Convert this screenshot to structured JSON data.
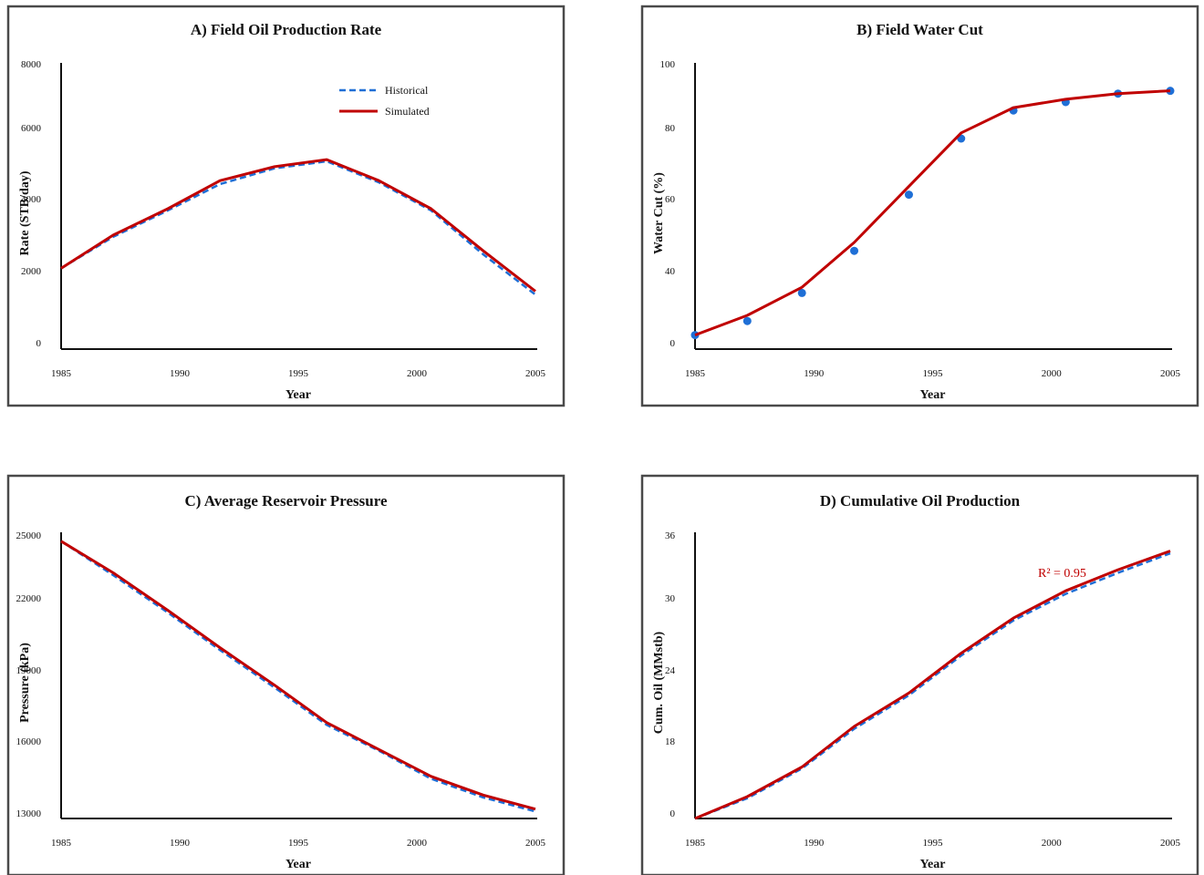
{
  "colors": {
    "historical": "#1f6fd6",
    "simulated": "#c00000"
  },
  "chart_data": [
    {
      "type": "line",
      "title": "A) Field Oil Production Rate",
      "xlabel": "Year",
      "ylabel": "Rate (STB/day)",
      "x": [
        1985,
        1987.2,
        1989.5,
        1991.7,
        1994,
        1996.2,
        1998.4,
        2000.6,
        2002.8,
        2005
      ],
      "xlim": [
        1985,
        2005
      ],
      "ylim": [
        0,
        8000
      ],
      "xticks": [
        "1985",
        "1990",
        "1995",
        "2000",
        "2005"
      ],
      "yticks": [
        "0",
        "2000",
        "4000",
        "6000",
        "8000"
      ],
      "series": [
        {
          "name": "Historical",
          "style": "dashed",
          "values": [
            2300,
            3200,
            3950,
            4700,
            5150,
            5350,
            4750,
            3950,
            2700,
            1550
          ]
        },
        {
          "name": "Simulated",
          "style": "solid",
          "values": [
            2300,
            3250,
            4000,
            4800,
            5200,
            5400,
            4800,
            4000,
            2800,
            1650
          ]
        }
      ],
      "legend": "top-center"
    },
    {
      "type": "line",
      "title": "B) Field Water Cut",
      "xlabel": "Year",
      "ylabel": "Water Cut (%)",
      "x": [
        1985,
        1987.2,
        1989.5,
        1991.7,
        1994,
        1996.2,
        1998.4,
        2000.6,
        2002.8,
        2005
      ],
      "xlim": [
        1985,
        2005
      ],
      "ylim": [
        0,
        100
      ],
      "xticks": [
        "1985",
        "1990",
        "1995",
        "2000",
        "2005"
      ],
      "yticks": [
        "0",
        "40",
        "60",
        "80",
        "100"
      ],
      "series": [
        {
          "name": "Historical",
          "style": "markers",
          "values": [
            5,
            10,
            20,
            35,
            55,
            75,
            85,
            88,
            91,
            92
          ]
        },
        {
          "name": "Simulated",
          "style": "solid",
          "values": [
            5,
            12,
            22,
            38,
            58,
            77,
            86,
            89,
            91,
            92
          ]
        }
      ]
    },
    {
      "type": "line",
      "title": "C) Average Reservoir Pressure",
      "xlabel": "Year",
      "ylabel": "Pressure (kPa)",
      "x": [
        1985,
        1987.2,
        1989.5,
        1991.7,
        1994,
        1996.2,
        1998.4,
        2000.6,
        2002.8,
        2005
      ],
      "xlim": [
        1985,
        2005
      ],
      "ylim": [
        13000,
        25000
      ],
      "xticks": [
        "1985",
        "1990",
        "1995",
        "2000",
        "2005"
      ],
      "yticks": [
        "13000",
        "16000",
        "19000",
        "22000",
        "25000"
      ],
      "series": [
        {
          "name": "Historical",
          "style": "dashed",
          "values": [
            24850,
            23400,
            21800,
            20200,
            18600,
            17000,
            15900,
            14700,
            13900,
            13300
          ]
        },
        {
          "name": "Simulated",
          "style": "solid",
          "values": [
            24850,
            23500,
            21900,
            20300,
            18700,
            17100,
            15950,
            14800,
            14000,
            13400
          ]
        }
      ]
    },
    {
      "type": "line",
      "title": "D) Cumulative Oil Production",
      "xlabel": "Year",
      "ylabel": "Cum. Oil (MMstb)",
      "x": [
        1985,
        1987.2,
        1989.5,
        1991.7,
        1994,
        1996.2,
        1998.4,
        2000.6,
        2002.8,
        2005
      ],
      "xlim": [
        1985,
        2005
      ],
      "ylim": [
        0,
        36
      ],
      "xticks": [
        "1985",
        "1990",
        "1995",
        "2000",
        "2005"
      ],
      "yticks": [
        "0",
        "18",
        "24",
        "30",
        "36"
      ],
      "series": [
        {
          "name": "Historical",
          "style": "dashed",
          "values": [
            0,
            2.6,
            6.4,
            11.5,
            15.8,
            20.9,
            25.4,
            28.8,
            31.5,
            34.0
          ]
        },
        {
          "name": "Simulated",
          "style": "solid",
          "values": [
            0,
            2.8,
            6.6,
            11.8,
            16.1,
            21.2,
            25.7,
            29.2,
            31.9,
            34.3
          ]
        }
      ],
      "annotation": "R² = 0.95"
    }
  ]
}
